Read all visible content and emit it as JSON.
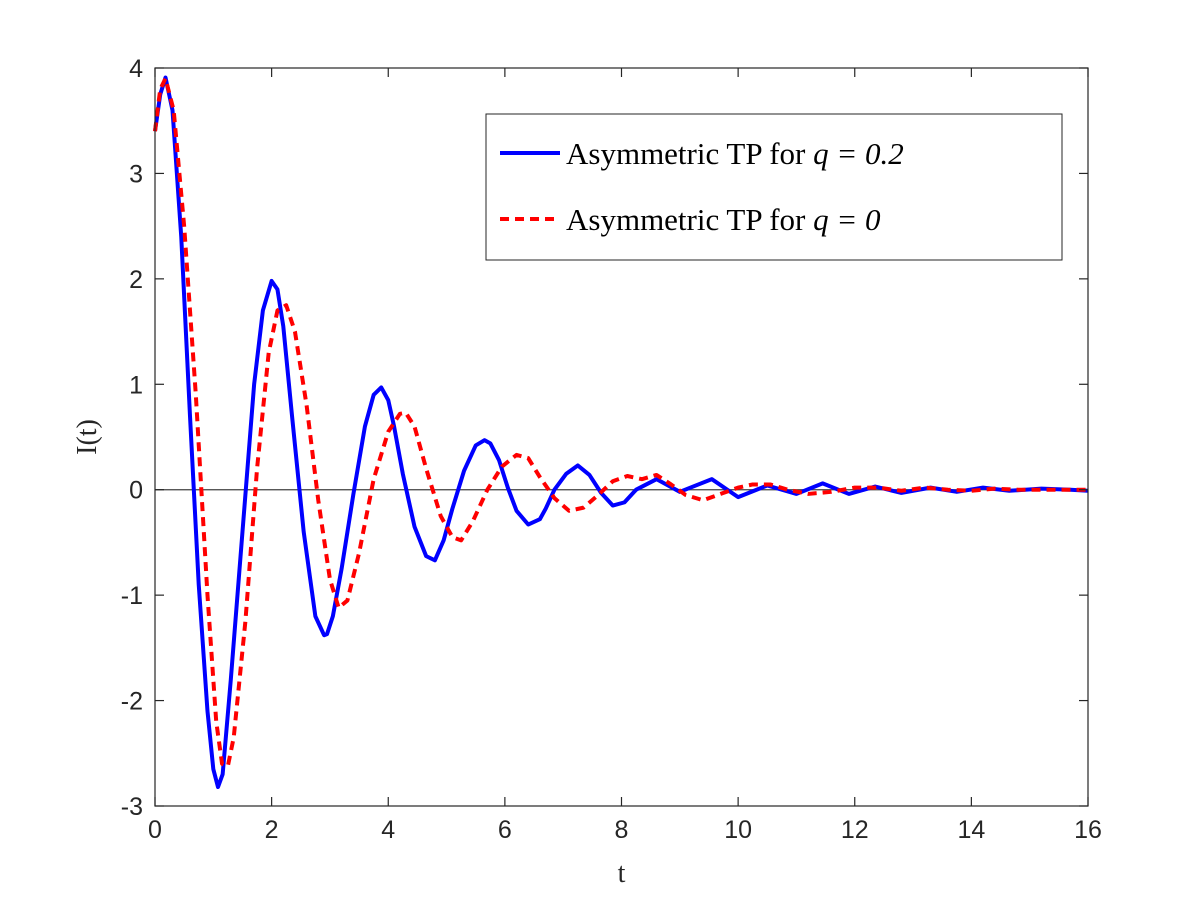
{
  "chart_data": {
    "type": "line",
    "title": "",
    "xlabel": "t",
    "ylabel": "I(t)",
    "xlim": [
      0,
      16
    ],
    "ylim": [
      -3,
      4
    ],
    "xticks": [
      0,
      2,
      4,
      6,
      8,
      10,
      12,
      14,
      16
    ],
    "yticks": [
      -3,
      -2,
      -1,
      0,
      1,
      2,
      3,
      4
    ],
    "grid": false,
    "box": true,
    "zero_line": true,
    "legend_position": "top-right",
    "series": [
      {
        "name": "Asymmetric TP for q = 0.2",
        "legend_prefix": "Asymmetric TP for ",
        "legend_math": "q = 0.2",
        "color": "#0000FF",
        "line_style": "solid",
        "x": [
          0.0,
          0.09,
          0.18,
          0.3,
          0.45,
          0.6,
          0.75,
          0.9,
          1.0,
          1.08,
          1.16,
          1.3,
          1.5,
          1.7,
          1.85,
          2.0,
          2.1,
          2.2,
          2.35,
          2.55,
          2.75,
          2.9,
          2.95,
          3.05,
          3.2,
          3.4,
          3.6,
          3.75,
          3.88,
          4.0,
          4.1,
          4.25,
          4.45,
          4.65,
          4.8,
          4.95,
          5.1,
          5.3,
          5.5,
          5.65,
          5.75,
          5.9,
          6.05,
          6.2,
          6.4,
          6.6,
          6.7,
          6.85,
          7.05,
          7.25,
          7.45,
          7.65,
          7.85,
          8.05,
          8.25,
          8.6,
          9.0,
          9.55,
          10.0,
          10.5,
          11.0,
          11.45,
          11.9,
          12.35,
          12.8,
          13.3,
          13.75,
          14.2,
          14.65,
          15.2,
          15.7,
          16.0
        ],
        "y": [
          3.4,
          3.75,
          3.91,
          3.6,
          2.4,
          0.7,
          -0.9,
          -2.1,
          -2.65,
          -2.82,
          -2.7,
          -1.8,
          -0.4,
          1.0,
          1.7,
          1.98,
          1.9,
          1.55,
          0.7,
          -0.4,
          -1.2,
          -1.38,
          -1.37,
          -1.2,
          -0.75,
          -0.05,
          0.6,
          0.9,
          0.97,
          0.85,
          0.6,
          0.15,
          -0.35,
          -0.63,
          -0.67,
          -0.48,
          -0.18,
          0.18,
          0.42,
          0.47,
          0.44,
          0.28,
          0.02,
          -0.2,
          -0.33,
          -0.28,
          -0.18,
          0.0,
          0.15,
          0.23,
          0.14,
          -0.03,
          -0.15,
          -0.12,
          0.0,
          0.1,
          -0.02,
          0.1,
          -0.07,
          0.04,
          -0.04,
          0.06,
          -0.04,
          0.03,
          -0.03,
          0.02,
          -0.02,
          0.02,
          -0.01,
          0.01,
          0.0,
          -0.01
        ]
      },
      {
        "name": "Asymmetric TP for q = 0",
        "legend_prefix": "Asymmetric TP for ",
        "legend_math": "q = 0",
        "color": "#FF0000",
        "line_style": "dashed",
        "x": [
          0.0,
          0.09,
          0.18,
          0.32,
          0.5,
          0.7,
          0.9,
          1.05,
          1.15,
          1.25,
          1.35,
          1.55,
          1.75,
          1.95,
          2.1,
          2.25,
          2.4,
          2.6,
          2.8,
          3.0,
          3.15,
          3.3,
          3.5,
          3.75,
          4.0,
          4.2,
          4.3,
          4.45,
          4.65,
          4.9,
          5.1,
          5.25,
          5.45,
          5.7,
          5.95,
          6.2,
          6.4,
          6.6,
          6.85,
          7.1,
          7.35,
          7.6,
          7.85,
          8.1,
          8.35,
          8.6,
          8.85,
          9.1,
          9.4,
          9.7,
          10.0,
          10.25,
          10.55,
          10.85,
          11.2,
          11.6,
          12.0,
          12.4,
          12.8,
          13.2,
          13.6,
          14.0,
          14.4,
          14.8,
          15.2,
          15.6,
          16.0
        ],
        "y": [
          3.4,
          3.8,
          3.9,
          3.6,
          2.5,
          0.9,
          -1.0,
          -2.2,
          -2.6,
          -2.62,
          -2.35,
          -1.25,
          0.2,
          1.3,
          1.7,
          1.75,
          1.5,
          0.8,
          -0.1,
          -0.85,
          -1.12,
          -1.05,
          -0.6,
          0.1,
          0.55,
          0.72,
          0.73,
          0.6,
          0.2,
          -0.25,
          -0.45,
          -0.48,
          -0.3,
          0.0,
          0.22,
          0.33,
          0.3,
          0.12,
          -0.08,
          -0.2,
          -0.17,
          -0.05,
          0.08,
          0.13,
          0.1,
          0.14,
          0.05,
          -0.05,
          -0.1,
          -0.04,
          0.02,
          0.05,
          0.05,
          0.0,
          -0.04,
          -0.02,
          0.02,
          0.02,
          -0.01,
          0.02,
          0.0,
          -0.01,
          0.01,
          0.0,
          0.0,
          0.0,
          0.0
        ]
      }
    ]
  }
}
